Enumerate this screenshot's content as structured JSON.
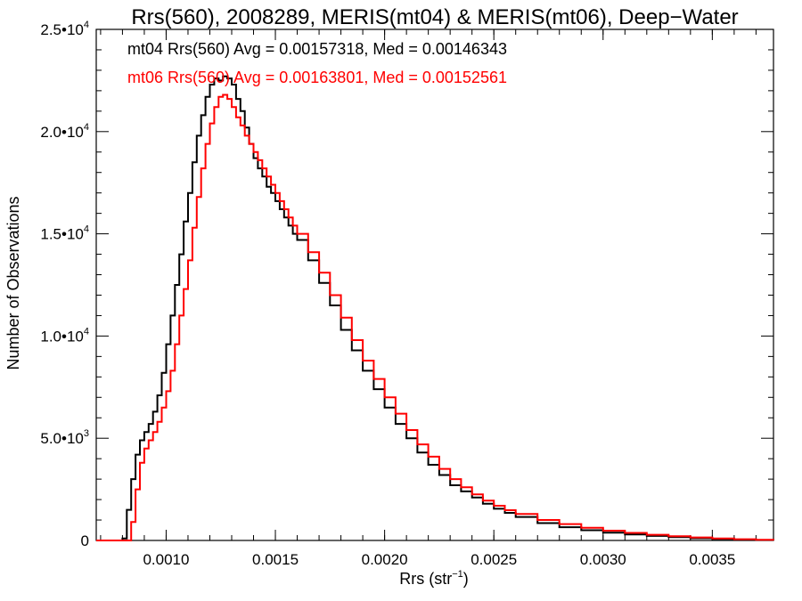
{
  "chart_data": {
    "type": "line",
    "title": "Rrs(560), 2008289, MERIS(mt04) & MERIS(mt06), Deep−Water",
    "xlabel": "Rrs (str",
    "xlabel_sup": "−1",
    "xlabel_close": ")",
    "ylabel": "Number of Observations",
    "xlim": [
      0.00068,
      0.00378
    ],
    "ylim": [
      0,
      25000
    ],
    "x_ticks": [
      {
        "value": 0.001,
        "label": "0.0010"
      },
      {
        "value": 0.0015,
        "label": "0.0015"
      },
      {
        "value": 0.002,
        "label": "0.0020"
      },
      {
        "value": 0.0025,
        "label": "0.0025"
      },
      {
        "value": 0.003,
        "label": "0.0030"
      },
      {
        "value": 0.0035,
        "label": "0.0035"
      }
    ],
    "y_ticks": [
      {
        "value": 0,
        "mant": "0",
        "exp": ""
      },
      {
        "value": 5000,
        "mant": "5.0•10",
        "exp": "3"
      },
      {
        "value": 10000,
        "mant": "1.0•10",
        "exp": "4"
      },
      {
        "value": 15000,
        "mant": "1.5•10",
        "exp": "4"
      },
      {
        "value": 20000,
        "mant": "2.0•10",
        "exp": "4"
      },
      {
        "value": 25000,
        "mant": "2.5•10",
        "exp": "4"
      }
    ],
    "series": [
      {
        "name": "mt04",
        "color": "#000000",
        "legend": "mt04 Rrs(560) Avg = 0.00157318, Med = 0.00146343",
        "x": [
          0.00068,
          0.0008,
          0.00082,
          0.00084,
          0.00086,
          0.00088,
          0.0009,
          0.00092,
          0.00094,
          0.00096,
          0.00098,
          0.001,
          0.00102,
          0.00104,
          0.00106,
          0.00108,
          0.0011,
          0.00112,
          0.00114,
          0.00116,
          0.00118,
          0.0012,
          0.00122,
          0.00124,
          0.00126,
          0.00128,
          0.0013,
          0.00132,
          0.00134,
          0.00136,
          0.00138,
          0.0014,
          0.00142,
          0.00144,
          0.00146,
          0.00148,
          0.0015,
          0.00152,
          0.00154,
          0.00156,
          0.00158,
          0.0016,
          0.00165,
          0.0017,
          0.00175,
          0.0018,
          0.00185,
          0.0019,
          0.00195,
          0.002,
          0.00205,
          0.0021,
          0.00215,
          0.0022,
          0.00225,
          0.0023,
          0.00235,
          0.0024,
          0.00245,
          0.0025,
          0.00255,
          0.0026,
          0.0027,
          0.0028,
          0.0029,
          0.003,
          0.0031,
          0.0032,
          0.0033,
          0.0034,
          0.0035,
          0.0036,
          0.0037,
          0.00378
        ],
        "y": [
          0,
          100,
          1500,
          3000,
          4200,
          4900,
          5300,
          5700,
          6300,
          7100,
          8200,
          9600,
          11000,
          12500,
          14000,
          15600,
          17000,
          18500,
          19800,
          20800,
          21700,
          22300,
          22600,
          22500,
          22700,
          22600,
          22300,
          21600,
          21000,
          20200,
          19400,
          18700,
          18200,
          17800,
          17300,
          17000,
          16600,
          16200,
          15800,
          15400,
          15000,
          14700,
          13700,
          12600,
          11500,
          10300,
          9300,
          8300,
          7400,
          6500,
          5700,
          5000,
          4300,
          3700,
          3200,
          2700,
          2400,
          2100,
          1800,
          1550,
          1350,
          1150,
          850,
          650,
          500,
          380,
          290,
          220,
          160,
          110,
          70,
          40,
          20,
          10
        ]
      },
      {
        "name": "mt06",
        "color": "#ff0000",
        "legend": "mt06 Rrs(560) Avg = 0.00163801, Med = 0.00152561",
        "x": [
          0.00068,
          0.00084,
          0.00086,
          0.00088,
          0.0009,
          0.00092,
          0.00094,
          0.00096,
          0.00098,
          0.001,
          0.00102,
          0.00104,
          0.00106,
          0.00108,
          0.0011,
          0.00112,
          0.00114,
          0.00116,
          0.00118,
          0.0012,
          0.00122,
          0.00124,
          0.00126,
          0.00128,
          0.0013,
          0.00132,
          0.00134,
          0.00136,
          0.00138,
          0.0014,
          0.00142,
          0.00144,
          0.00146,
          0.00148,
          0.0015,
          0.00152,
          0.00154,
          0.00156,
          0.00158,
          0.0016,
          0.00165,
          0.0017,
          0.00175,
          0.0018,
          0.00185,
          0.0019,
          0.00195,
          0.002,
          0.00205,
          0.0021,
          0.00215,
          0.0022,
          0.00225,
          0.0023,
          0.00235,
          0.0024,
          0.00245,
          0.0025,
          0.00255,
          0.0026,
          0.0027,
          0.0028,
          0.0029,
          0.003,
          0.0031,
          0.0032,
          0.0033,
          0.0034,
          0.0035,
          0.0036,
          0.0037,
          0.00378
        ],
        "y": [
          0,
          900,
          2500,
          3800,
          4500,
          4900,
          5300,
          5800,
          6500,
          7300,
          8300,
          9600,
          11000,
          12300,
          13700,
          15300,
          16800,
          18200,
          19400,
          20400,
          21200,
          21700,
          21800,
          21600,
          21200,
          20700,
          20300,
          19800,
          19400,
          19000,
          18600,
          18200,
          17800,
          17400,
          17000,
          16600,
          16200,
          15800,
          15400,
          15000,
          14100,
          13100,
          12000,
          10900,
          9800,
          8800,
          7900,
          7000,
          6200,
          5400,
          4700,
          4100,
          3500,
          3000,
          2600,
          2250,
          1950,
          1700,
          1480,
          1300,
          1000,
          800,
          620,
          480,
          370,
          280,
          210,
          150,
          100,
          60,
          30,
          15
        ]
      }
    ]
  }
}
